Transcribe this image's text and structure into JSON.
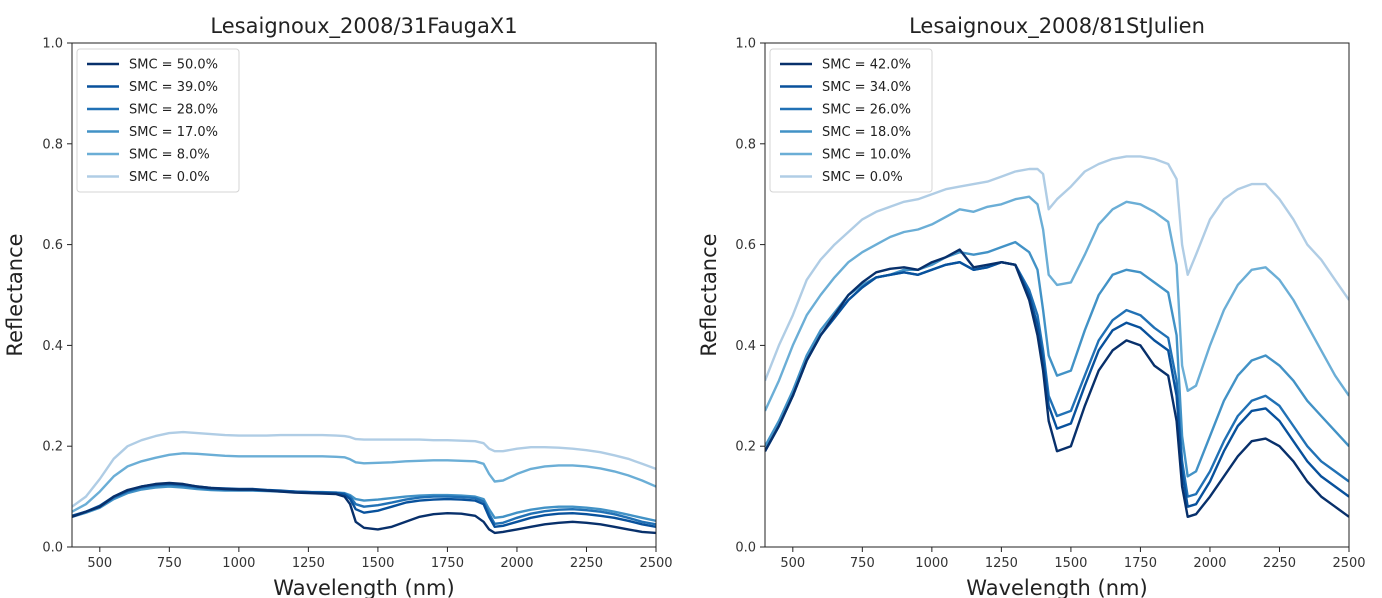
{
  "chart_data": [
    {
      "type": "line",
      "title": "Lesaignoux_2008/31FaugaX1",
      "xlabel": "Wavelength (nm)",
      "ylabel": "Reflectance",
      "xlim": [
        400,
        2500
      ],
      "ylim": [
        0,
        1.0
      ],
      "xticks": [
        500,
        750,
        1000,
        1250,
        1500,
        1750,
        2000,
        2250,
        2500
      ],
      "yticks": [
        0.0,
        0.2,
        0.4,
        0.6,
        0.8,
        1.0
      ],
      "legend_position": "top-left",
      "grid": false,
      "x": [
        400,
        450,
        500,
        550,
        600,
        650,
        700,
        750,
        800,
        850,
        900,
        950,
        1000,
        1050,
        1100,
        1150,
        1200,
        1250,
        1300,
        1350,
        1380,
        1400,
        1420,
        1450,
        1500,
        1550,
        1600,
        1650,
        1700,
        1750,
        1800,
        1850,
        1880,
        1900,
        1920,
        1950,
        2000,
        2050,
        2100,
        2150,
        2200,
        2250,
        2300,
        2350,
        2400,
        2450,
        2500
      ],
      "series": [
        {
          "name": "SMC = 50.0%",
          "color": "#08306b",
          "values": [
            0.06,
            0.07,
            0.08,
            0.1,
            0.113,
            0.12,
            0.125,
            0.127,
            0.125,
            0.12,
            0.117,
            0.115,
            0.114,
            0.114,
            0.112,
            0.11,
            0.108,
            0.107,
            0.106,
            0.105,
            0.1,
            0.085,
            0.05,
            0.038,
            0.035,
            0.04,
            0.05,
            0.06,
            0.065,
            0.067,
            0.066,
            0.062,
            0.05,
            0.035,
            0.028,
            0.03,
            0.035,
            0.04,
            0.045,
            0.048,
            0.05,
            0.048,
            0.045,
            0.04,
            0.035,
            0.03,
            0.028
          ]
        },
        {
          "name": "SMC = 39.0%",
          "color": "#08519c",
          "values": [
            0.062,
            0.07,
            0.082,
            0.1,
            0.112,
            0.12,
            0.124,
            0.126,
            0.124,
            0.12,
            0.117,
            0.116,
            0.115,
            0.115,
            0.113,
            0.112,
            0.11,
            0.109,
            0.108,
            0.107,
            0.104,
            0.095,
            0.075,
            0.068,
            0.072,
            0.08,
            0.088,
            0.092,
            0.094,
            0.095,
            0.094,
            0.092,
            0.085,
            0.06,
            0.04,
            0.042,
            0.05,
            0.058,
            0.063,
            0.066,
            0.067,
            0.065,
            0.062,
            0.058,
            0.052,
            0.045,
            0.04
          ]
        },
        {
          "name": "SMC = 28.0%",
          "color": "#2171b5",
          "values": [
            0.06,
            0.07,
            0.08,
            0.098,
            0.11,
            0.118,
            0.122,
            0.124,
            0.122,
            0.118,
            0.115,
            0.114,
            0.113,
            0.113,
            0.112,
            0.111,
            0.11,
            0.109,
            0.108,
            0.108,
            0.106,
            0.1,
            0.085,
            0.08,
            0.083,
            0.088,
            0.094,
            0.098,
            0.1,
            0.1,
            0.099,
            0.097,
            0.09,
            0.066,
            0.046,
            0.048,
            0.058,
            0.066,
            0.071,
            0.074,
            0.075,
            0.073,
            0.07,
            0.065,
            0.058,
            0.05,
            0.045
          ]
        },
        {
          "name": "SMC = 17.0%",
          "color": "#4292c6",
          "values": [
            0.06,
            0.068,
            0.078,
            0.095,
            0.107,
            0.114,
            0.118,
            0.12,
            0.118,
            0.115,
            0.113,
            0.112,
            0.112,
            0.112,
            0.111,
            0.11,
            0.11,
            0.109,
            0.109,
            0.108,
            0.107,
            0.103,
            0.095,
            0.092,
            0.094,
            0.097,
            0.1,
            0.102,
            0.103,
            0.103,
            0.102,
            0.1,
            0.095,
            0.075,
            0.058,
            0.06,
            0.068,
            0.074,
            0.078,
            0.08,
            0.08,
            0.078,
            0.075,
            0.07,
            0.064,
            0.058,
            0.052
          ]
        },
        {
          "name": "SMC = 8.0%",
          "color": "#6baed6",
          "values": [
            0.07,
            0.085,
            0.11,
            0.14,
            0.16,
            0.17,
            0.177,
            0.183,
            0.186,
            0.185,
            0.183,
            0.181,
            0.18,
            0.18,
            0.18,
            0.18,
            0.18,
            0.18,
            0.18,
            0.179,
            0.178,
            0.174,
            0.168,
            0.166,
            0.167,
            0.168,
            0.17,
            0.171,
            0.172,
            0.172,
            0.171,
            0.17,
            0.165,
            0.145,
            0.13,
            0.132,
            0.145,
            0.155,
            0.16,
            0.162,
            0.162,
            0.16,
            0.156,
            0.15,
            0.142,
            0.132,
            0.12
          ]
        },
        {
          "name": "SMC = 0.0%",
          "color": "#b0cde5",
          "values": [
            0.08,
            0.1,
            0.135,
            0.175,
            0.2,
            0.212,
            0.22,
            0.226,
            0.228,
            0.226,
            0.224,
            0.222,
            0.221,
            0.221,
            0.221,
            0.222,
            0.222,
            0.222,
            0.222,
            0.221,
            0.22,
            0.218,
            0.214,
            0.213,
            0.213,
            0.213,
            0.213,
            0.213,
            0.212,
            0.212,
            0.211,
            0.21,
            0.206,
            0.195,
            0.19,
            0.19,
            0.195,
            0.198,
            0.198,
            0.197,
            0.195,
            0.192,
            0.188,
            0.182,
            0.175,
            0.165,
            0.155
          ]
        }
      ]
    },
    {
      "type": "line",
      "title": "Lesaignoux_2008/81StJulien",
      "xlabel": "Wavelength (nm)",
      "ylabel": "Reflectance",
      "xlim": [
        400,
        2500
      ],
      "ylim": [
        0,
        1.0
      ],
      "xticks": [
        500,
        750,
        1000,
        1250,
        1500,
        1750,
        2000,
        2250,
        2500
      ],
      "yticks": [
        0.0,
        0.2,
        0.4,
        0.6,
        0.8,
        1.0
      ],
      "legend_position": "top-left",
      "grid": false,
      "x": [
        400,
        450,
        500,
        550,
        600,
        650,
        700,
        750,
        800,
        850,
        900,
        950,
        1000,
        1050,
        1100,
        1150,
        1200,
        1250,
        1300,
        1350,
        1380,
        1400,
        1420,
        1450,
        1500,
        1550,
        1600,
        1650,
        1700,
        1750,
        1800,
        1850,
        1880,
        1900,
        1920,
        1950,
        2000,
        2050,
        2100,
        2150,
        2200,
        2250,
        2300,
        2350,
        2400,
        2450,
        2500
      ],
      "series": [
        {
          "name": "SMC = 42.0%",
          "color": "#08306b",
          "values": [
            0.19,
            0.24,
            0.3,
            0.37,
            0.42,
            0.46,
            0.5,
            0.525,
            0.545,
            0.552,
            0.555,
            0.55,
            0.565,
            0.575,
            0.59,
            0.555,
            0.56,
            0.565,
            0.56,
            0.49,
            0.42,
            0.35,
            0.25,
            0.19,
            0.2,
            0.28,
            0.35,
            0.39,
            0.41,
            0.4,
            0.36,
            0.34,
            0.25,
            0.12,
            0.06,
            0.065,
            0.1,
            0.14,
            0.18,
            0.21,
            0.215,
            0.2,
            0.17,
            0.13,
            0.1,
            0.08,
            0.06
          ]
        },
        {
          "name": "SMC = 34.0%",
          "color": "#08519c",
          "values": [
            0.19,
            0.24,
            0.3,
            0.37,
            0.42,
            0.455,
            0.49,
            0.515,
            0.535,
            0.54,
            0.545,
            0.54,
            0.55,
            0.56,
            0.565,
            0.55,
            0.555,
            0.565,
            0.56,
            0.5,
            0.44,
            0.37,
            0.28,
            0.235,
            0.245,
            0.32,
            0.39,
            0.43,
            0.445,
            0.435,
            0.41,
            0.39,
            0.3,
            0.15,
            0.08,
            0.085,
            0.13,
            0.19,
            0.24,
            0.27,
            0.275,
            0.25,
            0.21,
            0.17,
            0.14,
            0.12,
            0.1
          ]
        },
        {
          "name": "SMC = 26.0%",
          "color": "#2171b5",
          "values": [
            0.19,
            0.24,
            0.3,
            0.37,
            0.42,
            0.455,
            0.49,
            0.515,
            0.535,
            0.54,
            0.545,
            0.54,
            0.55,
            0.56,
            0.565,
            0.55,
            0.555,
            0.565,
            0.56,
            0.51,
            0.46,
            0.39,
            0.3,
            0.26,
            0.27,
            0.34,
            0.41,
            0.45,
            0.47,
            0.46,
            0.435,
            0.415,
            0.33,
            0.17,
            0.1,
            0.105,
            0.15,
            0.21,
            0.26,
            0.29,
            0.3,
            0.28,
            0.24,
            0.2,
            0.17,
            0.15,
            0.13
          ]
        },
        {
          "name": "SMC = 18.0%",
          "color": "#4292c6",
          "values": [
            0.2,
            0.25,
            0.31,
            0.38,
            0.43,
            0.465,
            0.5,
            0.52,
            0.535,
            0.54,
            0.55,
            0.55,
            0.56,
            0.575,
            0.585,
            0.58,
            0.585,
            0.595,
            0.605,
            0.585,
            0.55,
            0.47,
            0.38,
            0.34,
            0.35,
            0.43,
            0.5,
            0.54,
            0.55,
            0.545,
            0.525,
            0.505,
            0.42,
            0.22,
            0.14,
            0.15,
            0.22,
            0.29,
            0.34,
            0.37,
            0.38,
            0.36,
            0.33,
            0.29,
            0.26,
            0.23,
            0.2
          ]
        },
        {
          "name": "SMC = 10.0%",
          "color": "#6baed6",
          "values": [
            0.27,
            0.33,
            0.4,
            0.46,
            0.5,
            0.535,
            0.565,
            0.585,
            0.6,
            0.615,
            0.625,
            0.63,
            0.64,
            0.655,
            0.67,
            0.665,
            0.675,
            0.68,
            0.69,
            0.695,
            0.68,
            0.63,
            0.54,
            0.52,
            0.525,
            0.58,
            0.64,
            0.67,
            0.685,
            0.68,
            0.665,
            0.645,
            0.56,
            0.36,
            0.31,
            0.32,
            0.4,
            0.47,
            0.52,
            0.55,
            0.555,
            0.53,
            0.49,
            0.44,
            0.39,
            0.34,
            0.3
          ]
        },
        {
          "name": "SMC = 0.0%",
          "color": "#b0cde5",
          "values": [
            0.33,
            0.4,
            0.46,
            0.53,
            0.57,
            0.6,
            0.625,
            0.65,
            0.665,
            0.675,
            0.685,
            0.69,
            0.7,
            0.71,
            0.715,
            0.72,
            0.725,
            0.735,
            0.745,
            0.75,
            0.75,
            0.74,
            0.67,
            0.69,
            0.715,
            0.745,
            0.76,
            0.77,
            0.775,
            0.775,
            0.77,
            0.76,
            0.73,
            0.6,
            0.54,
            0.58,
            0.65,
            0.69,
            0.71,
            0.72,
            0.72,
            0.69,
            0.65,
            0.6,
            0.57,
            0.53,
            0.49
          ]
        }
      ]
    }
  ]
}
